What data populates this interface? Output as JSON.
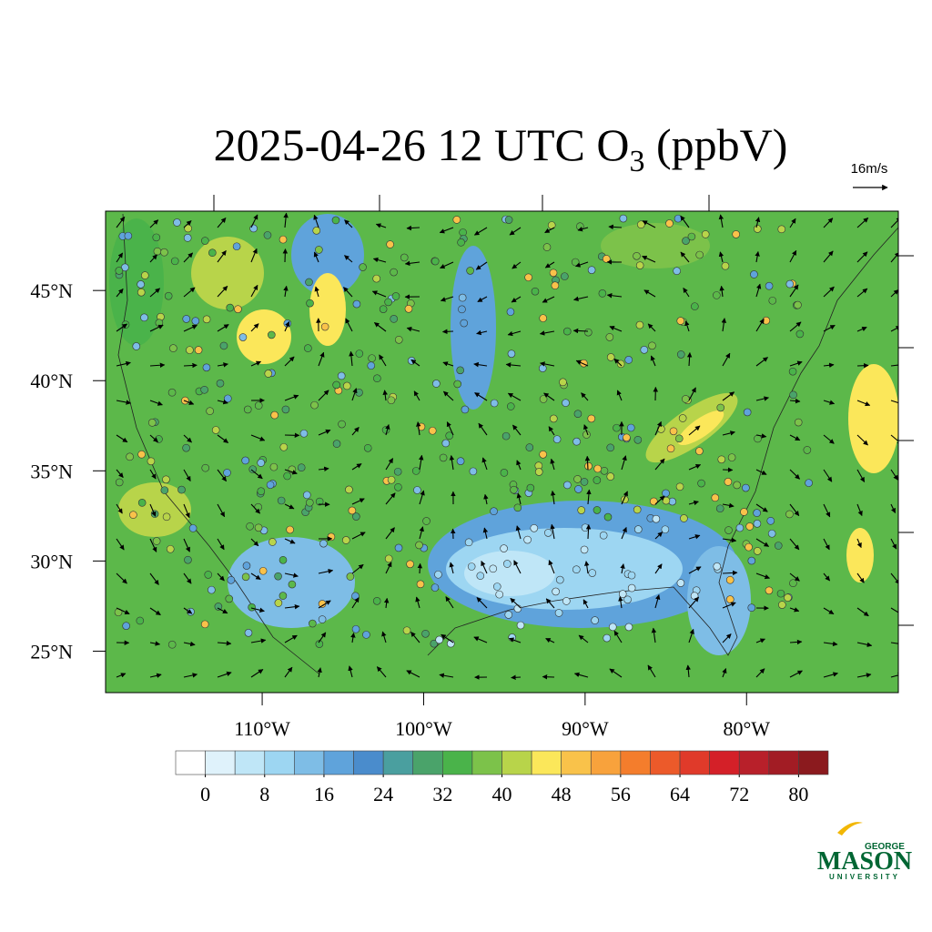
{
  "title": {
    "prefix": "2025-04-26 12 UTC O",
    "subscript": "3",
    "suffix": " (ppbV)"
  },
  "wind_scale_label": "16m/s",
  "map": {
    "latlim": [
      22.7,
      49.4
    ],
    "lonlim": [
      -119.7,
      -70.6
    ],
    "lat_ticks": [
      {
        "value": 45,
        "label": "45°N"
      },
      {
        "value": 40,
        "label": "40°N"
      },
      {
        "value": 35,
        "label": "35°N"
      },
      {
        "value": 30,
        "label": "30°N"
      },
      {
        "value": 25,
        "label": "25°N"
      }
    ],
    "lon_ticks": [
      {
        "value": -110,
        "label": "110°W"
      },
      {
        "value": -100,
        "label": "100°W"
      },
      {
        "value": -90,
        "label": "90°W"
      },
      {
        "value": -80,
        "label": "80°W"
      }
    ]
  },
  "colorbar": {
    "clim": [
      -4,
      84
    ],
    "colors": [
      "#ffffff",
      "#dff2fb",
      "#bfe6f7",
      "#9dd6f2",
      "#7ebde6",
      "#5fa3db",
      "#4a8ccc",
      "#4a9f9f",
      "#4aa36a",
      "#4ab34a",
      "#7cc24a",
      "#b8d44a",
      "#fbe75a",
      "#f9c24a",
      "#f8a23c",
      "#f47d2c",
      "#ec5a2a",
      "#e03a2a",
      "#d42028",
      "#b8202a",
      "#a21c24",
      "#8b1a1e"
    ],
    "ticks": [
      0,
      8,
      16,
      24,
      32,
      40,
      48,
      56,
      64,
      72,
      80
    ]
  },
  "logo": {
    "top": "GEORGE",
    "main": "MASON",
    "bottom": "UNIVERSITY"
  }
}
